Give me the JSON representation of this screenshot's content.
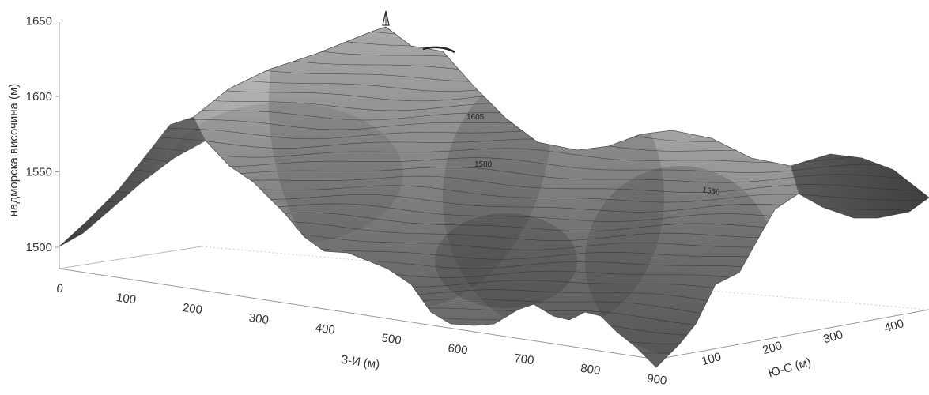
{
  "chart_data": {
    "type": "surface",
    "zlabel": "надморска височина (м)",
    "xlabel": "З-И (м)",
    "ylabel": "Ю-С (м)",
    "z_ticks": [
      1500,
      1550,
      1600,
      1650
    ],
    "x_ticks": [
      0,
      100,
      200,
      300,
      400,
      500,
      600,
      700,
      800,
      900
    ],
    "y_ticks": [
      100,
      200,
      300,
      400
    ],
    "zlim": [
      1490,
      1650
    ],
    "xlim": [
      0,
      900
    ],
    "ylim": [
      0,
      450
    ],
    "contour_labels": [
      "1605",
      "1580",
      "1560"
    ],
    "contour_interval": 5,
    "colors": {
      "surface_light": "#b9b9b9",
      "surface_dark": "#4a4a4a",
      "contour": "#333333"
    }
  }
}
